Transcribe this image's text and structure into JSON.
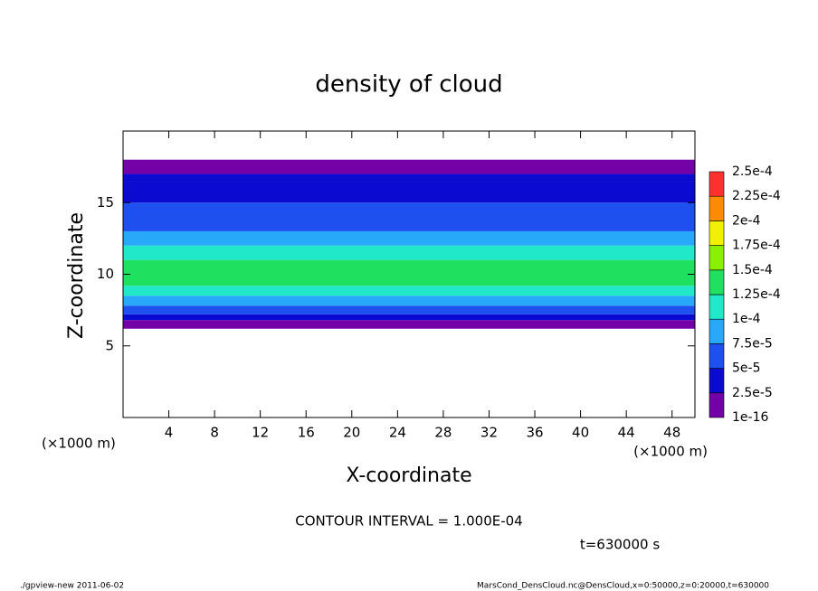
{
  "chart_data": {
    "type": "profile",
    "title": "density of cloud",
    "xlabel": "X-coordinate",
    "ylabel": "Z-coordinate",
    "x_unit": "(×1000 m)",
    "xlim": [
      0,
      50
    ],
    "ylim": [
      0,
      20
    ],
    "xticks": [
      4,
      8,
      12,
      16,
      20,
      24,
      28,
      32,
      36,
      40,
      44,
      48
    ],
    "yticks": [
      5,
      10,
      15
    ],
    "z_edges": [
      6.2,
      6.8,
      7.2,
      7.8,
      8.5,
      9.2,
      11,
      12,
      13,
      15,
      16.5,
      17,
      18
    ],
    "values": [
      1e-16,
      3e-05,
      6e-05,
      8.5e-05,
      0.00011,
      0.00013,
      0.00011,
      8.5e-05,
      6e-05,
      4e-05,
      3e-05,
      1e-16
    ],
    "levels": [
      {
        "value": 1e-16,
        "label": "1e-16"
      },
      {
        "value": 2.5e-05,
        "label": "2.5e-5"
      },
      {
        "value": 5e-05,
        "label": "5e-5"
      },
      {
        "value": 7.5e-05,
        "label": "7.5e-5"
      },
      {
        "value": 0.0001,
        "label": "1e-4"
      },
      {
        "value": 0.000125,
        "label": "1.25e-4"
      },
      {
        "value": 0.00015,
        "label": "1.5e-4"
      },
      {
        "value": 0.000175,
        "label": "1.75e-4"
      },
      {
        "value": 0.0002,
        "label": "2e-4"
      },
      {
        "value": 0.000225,
        "label": "2.25e-4"
      },
      {
        "value": 0.00025,
        "label": "2.5e-4"
      }
    ],
    "colors": [
      "#7400a8",
      "#0a0ad0",
      "#1e50f0",
      "#28a8f8",
      "#20e8c8",
      "#20e060",
      "#88f000",
      "#f0f000",
      "#ff8c00",
      "#ff3030"
    ],
    "contour_note": "CONTOUR INTERVAL = 1.000E-04",
    "time_note": "t=630000 s",
    "footer_left": "./gpview-new  2011-06-02",
    "footer_right": "MarsCond_DensCloud.nc@DensCloud,x=0:50000,z=0:20000,t=630000"
  }
}
